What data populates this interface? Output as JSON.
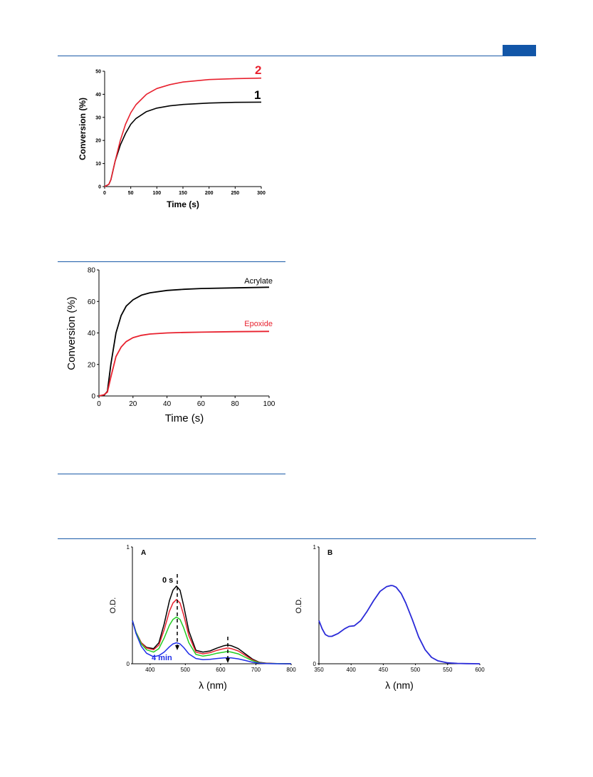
{
  "colors": {
    "rule": "#1a5aa8",
    "badge": "#1256a8"
  },
  "chart_data": [
    {
      "type": "line",
      "xlabel": "Time (s)",
      "ylabel": "Conversion (%)",
      "xlim": [
        0,
        300
      ],
      "ylim": [
        0,
        50
      ],
      "x_ticks": [
        "0",
        "50",
        "100",
        "150",
        "200",
        "250",
        "300"
      ],
      "y_ticks": [
        "0",
        "10",
        "20",
        "30",
        "40",
        "50"
      ],
      "series": [
        {
          "name": "1",
          "color": "#000000",
          "x": [
            0,
            8,
            12,
            20,
            30,
            40,
            50,
            60,
            80,
            100,
            125,
            150,
            200,
            250,
            300
          ],
          "y": [
            0,
            1,
            3,
            11,
            18,
            23,
            27,
            29.5,
            32.5,
            34,
            35,
            35.6,
            36.2,
            36.5,
            36.6
          ]
        },
        {
          "name": "2",
          "color": "#e8212e",
          "x": [
            0,
            8,
            12,
            20,
            30,
            40,
            50,
            60,
            80,
            100,
            125,
            150,
            200,
            250,
            300
          ],
          "y": [
            0,
            1,
            3,
            11,
            20,
            27,
            32,
            35.5,
            40,
            42.5,
            44.2,
            45.3,
            46.4,
            46.8,
            47
          ]
        }
      ]
    },
    {
      "type": "line",
      "xlabel": "Time (s)",
      "ylabel": "Conversion (%)",
      "xlim": [
        0,
        100
      ],
      "ylim": [
        0,
        80
      ],
      "x_ticks": [
        "0",
        "20",
        "40",
        "60",
        "80",
        "100"
      ],
      "y_ticks": [
        "0",
        "20",
        "40",
        "60",
        "80"
      ],
      "series": [
        {
          "name": "Acrylate",
          "color": "#000000",
          "x": [
            0,
            3,
            5,
            7,
            10,
            13,
            16,
            20,
            25,
            30,
            40,
            50,
            60,
            80,
            100
          ],
          "y": [
            0,
            0.5,
            3,
            20,
            40,
            51,
            57,
            61,
            64,
            65.5,
            67,
            67.7,
            68.2,
            68.6,
            69
          ]
        },
        {
          "name": "Epoxide",
          "color": "#e8212e",
          "x": [
            0,
            3,
            5,
            7,
            10,
            13,
            16,
            20,
            25,
            30,
            40,
            50,
            60,
            80,
            100
          ],
          "y": [
            0,
            0.8,
            2.5,
            12,
            25,
            31,
            34.5,
            37,
            38.5,
            39.3,
            40,
            40.3,
            40.5,
            40.8,
            41
          ]
        }
      ]
    },
    {
      "type": "line",
      "panel_label": "A",
      "xlabel": "λ (nm)",
      "ylabel": "O.D.",
      "xlim": [
        350,
        800
      ],
      "ylim": [
        0,
        1
      ],
      "x_ticks": [
        "400",
        "500",
        "600",
        "700",
        "800"
      ],
      "y_ticks": [
        "0",
        "1"
      ],
      "annotations": [
        "0 s",
        "4 min"
      ],
      "series": [
        {
          "color": "#000000",
          "x": [
            350,
            360,
            375,
            390,
            410,
            425,
            440,
            455,
            465,
            475,
            485,
            495,
            510,
            530,
            550,
            570,
            590,
            610,
            620,
            630,
            650,
            670,
            690,
            710,
            730,
            760,
            800
          ],
          "y": [
            0.37,
            0.27,
            0.18,
            0.14,
            0.13,
            0.18,
            0.34,
            0.54,
            0.63,
            0.665,
            0.63,
            0.5,
            0.28,
            0.115,
            0.1,
            0.11,
            0.135,
            0.155,
            0.16,
            0.155,
            0.13,
            0.085,
            0.04,
            0.012,
            0.004,
            0.001,
            0
          ]
        },
        {
          "color": "#e8212e",
          "x": [
            350,
            360,
            375,
            390,
            410,
            425,
            440,
            455,
            465,
            475,
            485,
            495,
            510,
            530,
            550,
            570,
            590,
            610,
            620,
            630,
            650,
            670,
            690,
            710,
            730,
            760,
            800
          ],
          "y": [
            0.37,
            0.27,
            0.18,
            0.135,
            0.12,
            0.16,
            0.29,
            0.45,
            0.52,
            0.55,
            0.52,
            0.42,
            0.24,
            0.1,
            0.085,
            0.095,
            0.115,
            0.13,
            0.135,
            0.13,
            0.11,
            0.072,
            0.034,
            0.01,
            0.003,
            0.001,
            0
          ]
        },
        {
          "color": "#22cc22",
          "x": [
            350,
            360,
            375,
            390,
            410,
            425,
            440,
            455,
            465,
            475,
            485,
            495,
            510,
            530,
            550,
            570,
            590,
            610,
            620,
            630,
            650,
            670,
            690,
            710,
            730,
            760,
            800
          ],
          "y": [
            0.37,
            0.27,
            0.17,
            0.12,
            0.1,
            0.13,
            0.22,
            0.33,
            0.38,
            0.4,
            0.38,
            0.31,
            0.18,
            0.08,
            0.065,
            0.075,
            0.09,
            0.1,
            0.105,
            0.1,
            0.085,
            0.055,
            0.026,
            0.008,
            0.002,
            0.001,
            0
          ]
        },
        {
          "color": "#1f2ee8",
          "x": [
            350,
            360,
            375,
            390,
            410,
            425,
            440,
            455,
            465,
            475,
            485,
            495,
            510,
            530,
            550,
            570,
            590,
            610,
            620,
            630,
            650,
            670,
            690,
            710,
            730,
            760,
            800
          ],
          "y": [
            0.37,
            0.26,
            0.15,
            0.09,
            0.06,
            0.07,
            0.1,
            0.145,
            0.17,
            0.18,
            0.17,
            0.14,
            0.085,
            0.045,
            0.035,
            0.038,
            0.045,
            0.05,
            0.052,
            0.05,
            0.042,
            0.028,
            0.013,
            0.004,
            0.001,
            0,
            0
          ]
        }
      ]
    },
    {
      "type": "line",
      "panel_label": "B",
      "xlabel": "λ (nm)",
      "ylabel": "O.D.",
      "xlim": [
        350,
        600
      ],
      "ylim": [
        0,
        1
      ],
      "x_ticks": [
        "350",
        "400",
        "450",
        "500",
        "550",
        "600"
      ],
      "y_ticks": [
        "0",
        "1"
      ],
      "series": [
        {
          "color": "#2a2ad8",
          "x": [
            350,
            355,
            360,
            365,
            370,
            380,
            390,
            397,
            405,
            415,
            425,
            435,
            445,
            455,
            462,
            465,
            470,
            478,
            485,
            495,
            505,
            515,
            525,
            535,
            550,
            565,
            580,
            600
          ],
          "y": [
            0.37,
            0.3,
            0.25,
            0.235,
            0.235,
            0.26,
            0.3,
            0.32,
            0.325,
            0.37,
            0.45,
            0.54,
            0.62,
            0.66,
            0.67,
            0.668,
            0.655,
            0.6,
            0.52,
            0.38,
            0.23,
            0.12,
            0.055,
            0.025,
            0.008,
            0.003,
            0.001,
            0
          ]
        }
      ]
    }
  ]
}
